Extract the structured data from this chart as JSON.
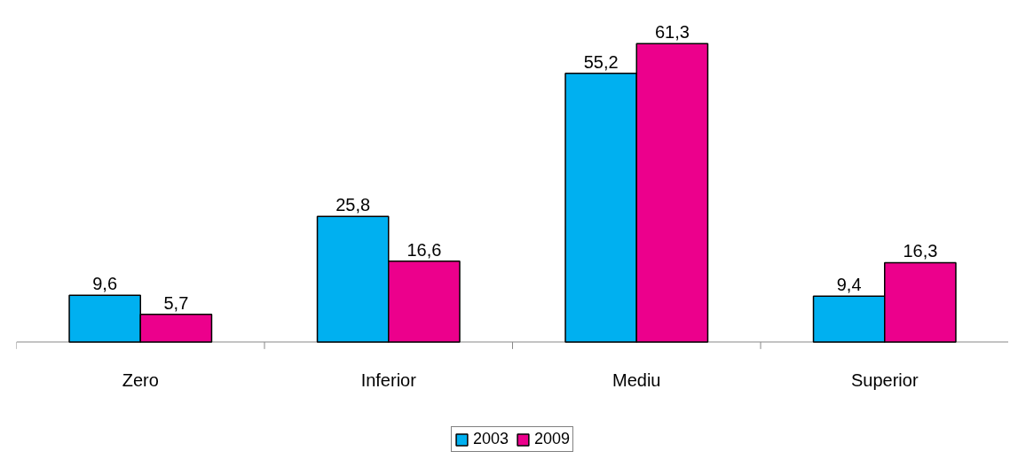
{
  "chart_data": {
    "type": "bar",
    "categories": [
      "Zero",
      "Inferior",
      "Mediu",
      "Superior"
    ],
    "series": [
      {
        "name": "2003",
        "color": "#00b0f0",
        "values": [
          9.6,
          25.8,
          55.2,
          9.4
        ],
        "value_labels": [
          "9,6",
          "25,8",
          "55,2",
          "9,4"
        ]
      },
      {
        "name": "2009",
        "color": "#ec008c",
        "values": [
          5.7,
          16.6,
          61.3,
          16.3
        ],
        "value_labels": [
          "5,7",
          "16,6",
          "61,3",
          "16,3"
        ]
      }
    ],
    "legend": "bottom",
    "grid": false
  }
}
